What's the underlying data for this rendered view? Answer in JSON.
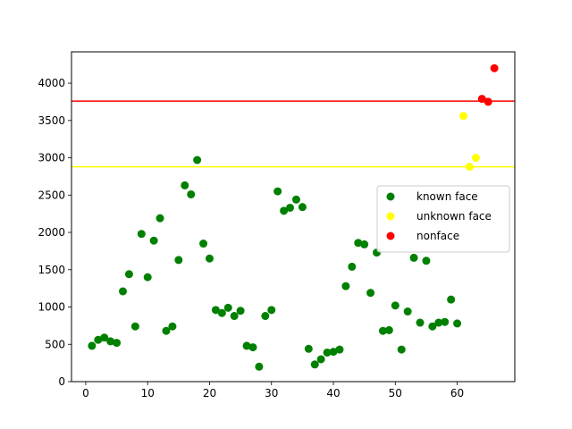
{
  "chart_data": {
    "type": "scatter",
    "title": "",
    "xlabel": "",
    "ylabel": "",
    "xlim": [
      -2.3,
      69.3
    ],
    "ylim": [
      0,
      4420
    ],
    "x_ticks": [
      0,
      10,
      20,
      30,
      40,
      50,
      60
    ],
    "y_ticks": [
      0,
      500,
      1000,
      1500,
      2000,
      2500,
      3000,
      3500,
      4000
    ],
    "grid": false,
    "legend_position": "center-right",
    "threshold_lines": [
      {
        "y": 3760,
        "color": "#ff0000"
      },
      {
        "y": 2880,
        "color": "#ffff00"
      }
    ],
    "series": [
      {
        "name": "known face",
        "color": "#008000",
        "x": [
          1,
          2,
          3,
          4,
          5,
          6,
          7,
          8,
          9,
          10,
          11,
          12,
          13,
          14,
          15,
          16,
          17,
          18,
          19,
          20,
          21,
          22,
          23,
          24,
          25,
          26,
          27,
          28,
          29,
          30,
          31,
          32,
          33,
          34,
          35,
          36,
          37,
          38,
          39,
          40,
          41,
          42,
          43,
          44,
          45,
          46,
          47,
          48,
          49,
          50,
          51,
          52,
          53,
          54,
          55,
          56,
          57,
          58,
          59,
          60
        ],
        "y": [
          480,
          560,
          590,
          540,
          520,
          1210,
          1440,
          740,
          1980,
          1400,
          1890,
          2190,
          680,
          740,
          1630,
          2630,
          2510,
          2970,
          1850,
          1650,
          960,
          920,
          990,
          880,
          950,
          480,
          460,
          200,
          880,
          960,
          2550,
          2290,
          2330,
          2440,
          2340,
          440,
          230,
          300,
          390,
          400,
          430,
          1280,
          1540,
          1860,
          1840,
          1190,
          1730,
          680,
          690,
          1020,
          430,
          940,
          1660,
          790,
          1620,
          740,
          790,
          800,
          1100,
          780
        ]
      },
      {
        "name": "unknown face",
        "color": "#ffff00",
        "x": [
          61,
          62,
          63
        ],
        "y": [
          3560,
          2880,
          3000
        ]
      },
      {
        "name": "nonface",
        "color": "#ff0000",
        "x": [
          64,
          65,
          66
        ],
        "y": [
          3790,
          3750,
          4200
        ]
      }
    ]
  }
}
